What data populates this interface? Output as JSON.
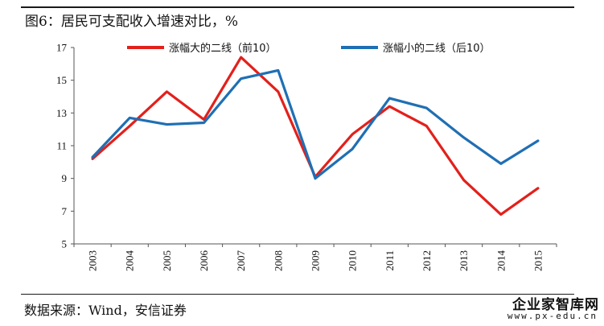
{
  "header": {
    "title": "图6：居民可支配收入增速对比，%"
  },
  "footer": {
    "source": "数据来源：Wind，安信证券",
    "watermark_name": "企业家智库网",
    "watermark_url": "www.px-edu.cn"
  },
  "chart_data": {
    "type": "line",
    "title": "图6：居民可支配收入增速对比，%",
    "xlabel": "",
    "ylabel": "",
    "categories": [
      "2003",
      "2004",
      "2005",
      "2006",
      "2007",
      "2008",
      "2009",
      "2010",
      "2011",
      "2012",
      "2013",
      "2014",
      "2015"
    ],
    "ylim": [
      5,
      17
    ],
    "yticks": [
      5,
      7,
      9,
      11,
      13,
      15,
      17
    ],
    "grid": false,
    "legend_position": "top",
    "series": [
      {
        "name": "涨幅大的二线（前10）",
        "color": "#e3201b",
        "values": [
          10.2,
          12.2,
          14.3,
          12.6,
          16.4,
          14.3,
          9.1,
          11.7,
          13.4,
          12.2,
          8.9,
          6.8,
          8.4
        ]
      },
      {
        "name": "涨幅小的二线（后10）",
        "color": "#1f6fb4",
        "values": [
          10.3,
          12.7,
          12.3,
          12.4,
          15.1,
          15.6,
          9.0,
          10.8,
          13.9,
          13.3,
          11.5,
          9.9,
          11.3
        ]
      }
    ]
  }
}
